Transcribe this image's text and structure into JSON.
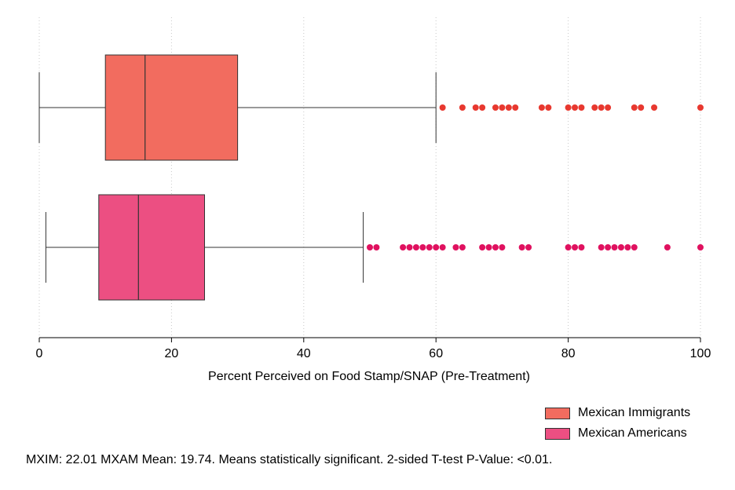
{
  "chart_data": {
    "type": "boxplot",
    "orientation": "horizontal",
    "xlabel": "Percent Perceived on Food Stamp/SNAP (Pre-Treatment)",
    "xlim": [
      0,
      100
    ],
    "xticks": [
      0,
      20,
      40,
      60,
      80,
      100
    ],
    "grid": true,
    "legend_position": "bottom-right",
    "series": [
      {
        "name": "Mexican Immigrants",
        "color": "#f26c5f",
        "outlier_color": "#e8382f",
        "whisker_low": 0,
        "q1": 10,
        "median": 16,
        "q3": 30,
        "whisker_high": 60,
        "outliers": [
          61,
          64,
          66,
          67,
          69,
          70,
          71,
          72,
          76,
          77,
          80,
          81,
          82,
          84,
          85,
          86,
          90,
          91,
          93,
          100
        ]
      },
      {
        "name": "Mexican Americans",
        "color": "#ec4f82",
        "outlier_color": "#e0115f",
        "whisker_low": 1,
        "q1": 9,
        "median": 15,
        "q3": 25,
        "whisker_high": 49,
        "outliers": [
          50,
          51,
          55,
          56,
          57,
          58,
          59,
          60,
          61,
          63,
          64,
          67,
          68,
          69,
          70,
          73,
          74,
          80,
          81,
          82,
          85,
          86,
          87,
          88,
          89,
          90,
          95,
          100
        ]
      }
    ]
  },
  "note": "MXIM: 22.01 MXAM Mean: 19.74. Means statistically significant. 2-sided T-test P-Value: <0.01."
}
